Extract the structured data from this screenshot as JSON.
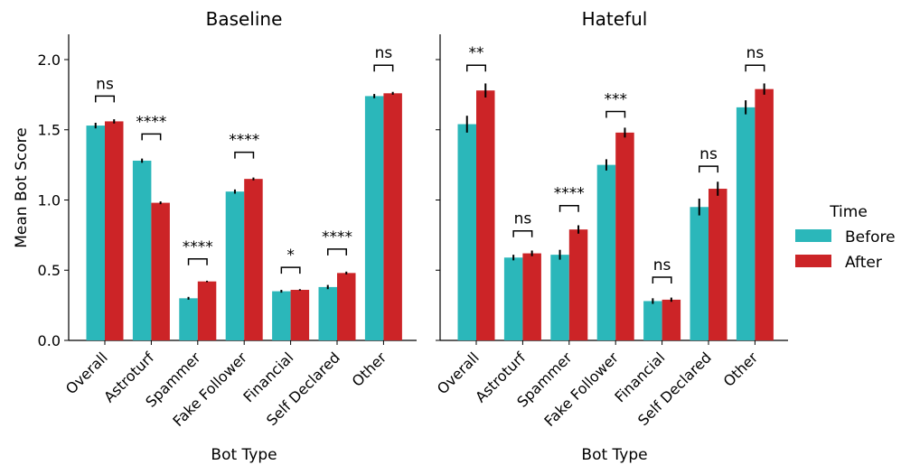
{
  "chart_data": {
    "type": "bar",
    "ylabel": "Mean Bot Score",
    "ylim": [
      0,
      2.18
    ],
    "yticks": [
      "0.0",
      "0.5",
      "1.0",
      "1.5",
      "2.0"
    ],
    "legend": {
      "title": "Time",
      "placement": "right",
      "entries": [
        {
          "name": "Before",
          "color": "#2bb7ba"
        },
        {
          "name": "After",
          "color": "#cc2427"
        }
      ]
    },
    "panels": [
      {
        "title": "Baseline",
        "xlabel": "Bot Type",
        "categories": [
          "Overall",
          "Astroturf",
          "Spammer",
          "Fake Follower",
          "Financial",
          "Self Declared",
          "Other"
        ],
        "series": [
          {
            "name": "Before",
            "values": [
              1.53,
              1.28,
              0.3,
              1.06,
              0.35,
              0.38,
              1.74
            ],
            "errors": [
              0.02,
              0.015,
              0.01,
              0.015,
              0.01,
              0.015,
              0.015
            ]
          },
          {
            "name": "After",
            "values": [
              1.56,
              0.98,
              0.42,
              1.15,
              0.36,
              0.48,
              1.76
            ],
            "errors": [
              0.015,
              0.01,
              0.005,
              0.01,
              0.005,
              0.01,
              0.01
            ]
          }
        ],
        "significance": [
          "ns",
          "****",
          "****",
          "****",
          "*",
          "****",
          "ns"
        ],
        "bracket_y": [
          1.74,
          1.47,
          0.58,
          1.34,
          0.52,
          0.65,
          1.96
        ]
      },
      {
        "title": "Hateful",
        "xlabel": "Bot Type",
        "categories": [
          "Overall",
          "Astroturf",
          "Spammer",
          "Fake Follower",
          "Financial",
          "Self Declared",
          "Other"
        ],
        "series": [
          {
            "name": "Before",
            "values": [
              1.54,
              0.59,
              0.61,
              1.25,
              0.28,
              0.95,
              1.66
            ],
            "errors": [
              0.06,
              0.02,
              0.035,
              0.04,
              0.02,
              0.06,
              0.05
            ]
          },
          {
            "name": "After",
            "values": [
              1.78,
              0.62,
              0.79,
              1.48,
              0.29,
              1.08,
              1.79
            ],
            "errors": [
              0.05,
              0.02,
              0.03,
              0.035,
              0.015,
              0.05,
              0.04
            ]
          }
        ],
        "significance": [
          "**",
          "ns",
          "****",
          "***",
          "ns",
          "ns",
          "ns"
        ],
        "bracket_y": [
          1.96,
          0.78,
          0.96,
          1.63,
          0.45,
          1.24,
          1.96
        ]
      }
    ]
  }
}
